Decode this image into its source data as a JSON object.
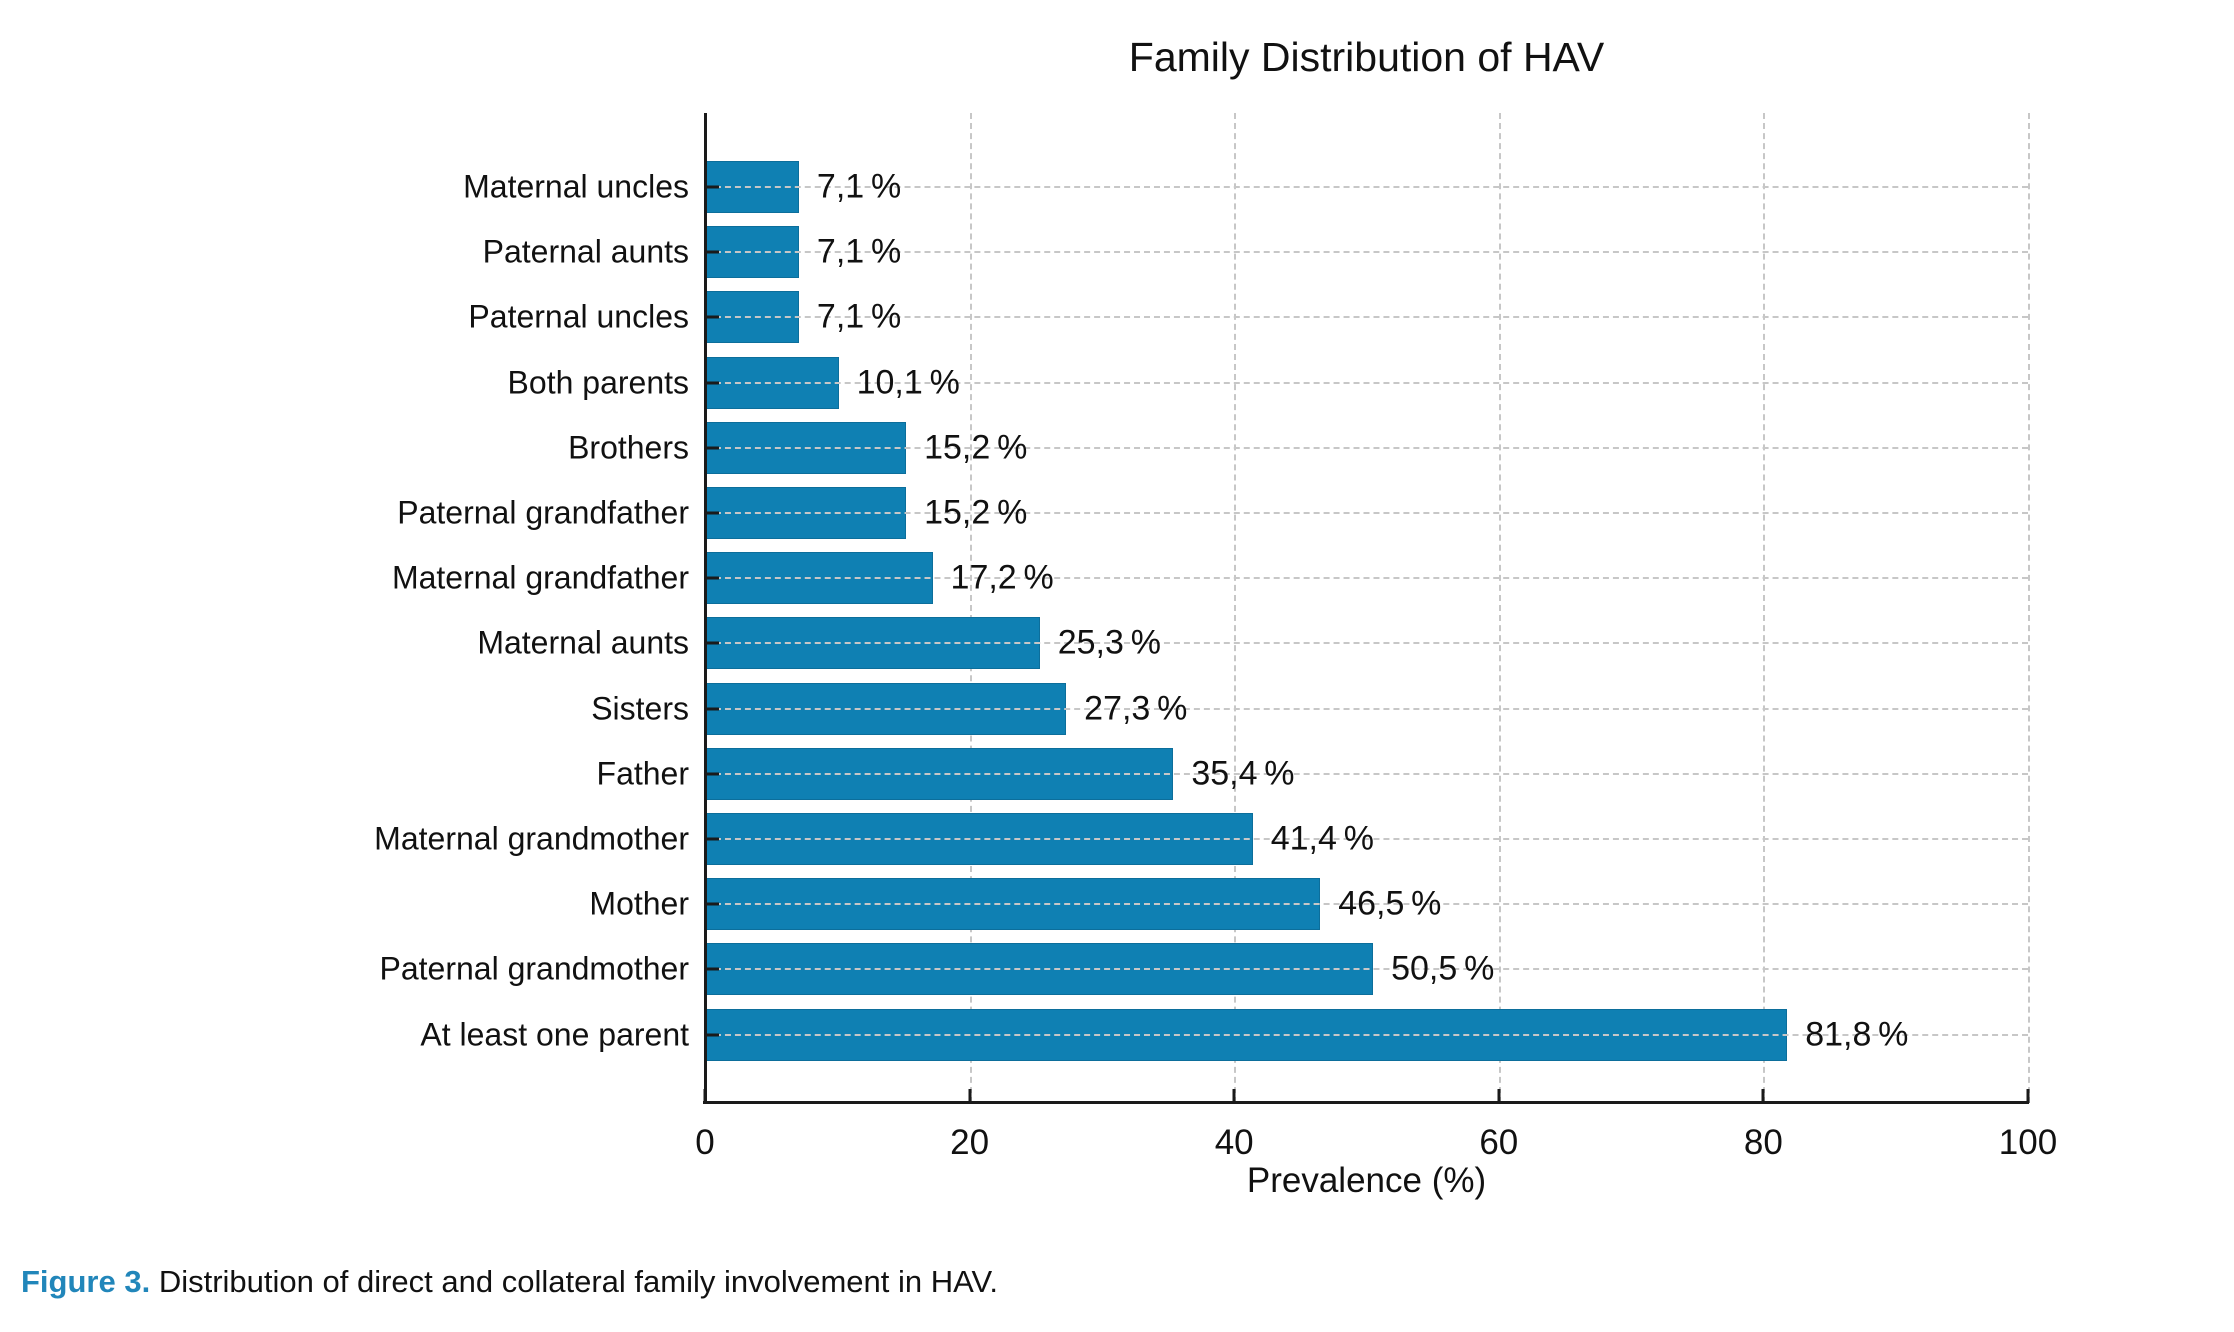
{
  "chart_title": "Family Distribution of HAV",
  "x_axis": {
    "label": "Prevalence (%)",
    "tick_labels": [
      "0",
      "20",
      "40",
      "60",
      "80",
      "100"
    ]
  },
  "caption": {
    "label": "Figure 3.",
    "text": "Distribution of direct and collateral family involvement in HAV."
  },
  "colors": {
    "bar": "#0f80b3",
    "bar_edge": "#0c6e9b",
    "axis": "#1a1a1a",
    "grid": "#c7c7c7",
    "caption_accent": "#2186ba",
    "text": "#111111"
  },
  "chart_data": {
    "type": "bar",
    "orientation": "horizontal",
    "title": "Family Distribution of HAV",
    "xlabel": "Prevalence (%)",
    "ylabel": "",
    "xlim": [
      0,
      100
    ],
    "xticks": [
      0,
      20,
      40,
      60,
      80,
      100
    ],
    "grid": {
      "vertical": true,
      "horizontal": true,
      "style": "dashed",
      "vertical_behind_bars": true,
      "horizontal_above_bars": true
    },
    "legend": "none",
    "categories": [
      "Maternal uncles",
      "Paternal aunts",
      "Paternal uncles",
      "Both parents",
      "Brothers",
      "Paternal grandfather",
      "Maternal grandfather",
      "Maternal aunts",
      "Sisters",
      "Father",
      "Maternal grandmother",
      "Mother",
      "Paternal grandmother",
      "At least one parent"
    ],
    "values": [
      7.1,
      7.1,
      7.1,
      10.1,
      15.2,
      15.2,
      17.2,
      25.3,
      27.3,
      35.4,
      41.4,
      46.5,
      50.5,
      81.8
    ],
    "value_labels": [
      "7,1 %",
      "7,1 %",
      "7,1 %",
      "10,1 %",
      "15,2 %",
      "15,2 %",
      "17,2 %",
      "25,3 %",
      "27,3 %",
      "35,4 %",
      "41,4 %",
      "46,5 %",
      "50,5 %",
      "81,8 %"
    ]
  }
}
